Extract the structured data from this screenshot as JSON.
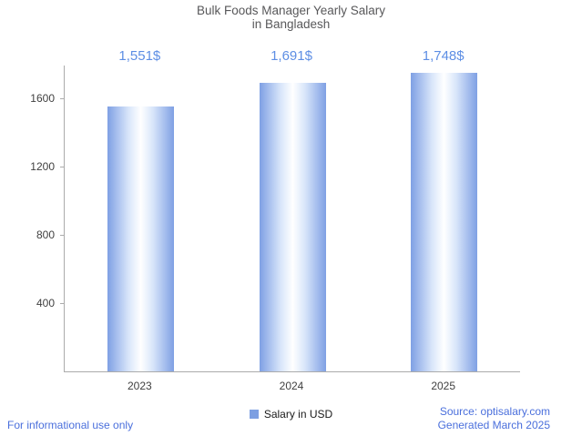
{
  "title": {
    "line1": "Bulk Foods Manager Yearly Salary",
    "line2": "in Bangladesh"
  },
  "chart_data": {
    "type": "bar",
    "title": "Bulk Foods Manager Yearly Salary in Bangladesh",
    "categories": [
      "2023",
      "2024",
      "2025"
    ],
    "series": [
      {
        "name": "Salary in USD",
        "values": [
          1551,
          1691,
          1748
        ]
      }
    ],
    "value_labels": [
      "1,551$",
      "1,691$",
      "1,748$"
    ],
    "xlabel": "",
    "ylabel": "",
    "ylim": [
      0,
      1748
    ],
    "yticks": [
      400,
      800,
      1200,
      1600
    ],
    "grid": false,
    "legend_position": "bottom",
    "colors": {
      "bar_edge": "#7fa0e4",
      "bar_light": "#d9e6fa",
      "bar_center": "#ffffff",
      "annotation": "#5d8ee4",
      "axis_line": "#ababab",
      "axis_text": "#404040",
      "title_text": "#58585a"
    }
  },
  "legend": {
    "label": "Salary in USD",
    "swatch_color": "#7d9fe2"
  },
  "footer": {
    "left": "For informational use only",
    "source": "Source: optisalary.com",
    "generated": "Generated March 2025",
    "link_color": "#4a6fdc"
  }
}
